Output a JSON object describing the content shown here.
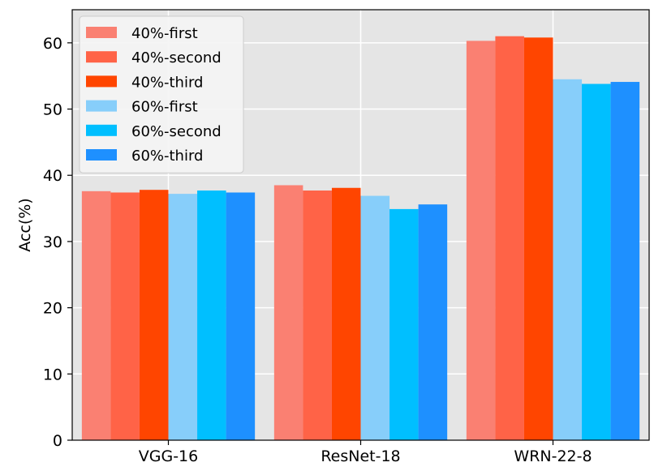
{
  "chart_data": {
    "type": "bar",
    "title": "",
    "xlabel": "",
    "ylabel": "Acc(%)",
    "ylim": [
      0,
      65
    ],
    "yticks": [
      0,
      10,
      20,
      30,
      40,
      50,
      60
    ],
    "grid": true,
    "legend_position": "top-left",
    "categories": [
      "VGG-16",
      "ResNet-18",
      "WRN-22-8"
    ],
    "series": [
      {
        "name": "40%-first",
        "color": "#FA8072",
        "values": [
          37.6,
          38.5,
          60.3
        ]
      },
      {
        "name": "40%-second",
        "color": "#FF6347",
        "values": [
          37.4,
          37.7,
          61.0
        ]
      },
      {
        "name": "40%-third",
        "color": "#FF4500",
        "values": [
          37.8,
          38.1,
          60.8
        ]
      },
      {
        "name": "60%-first",
        "color": "#87CEFA",
        "values": [
          37.2,
          36.9,
          54.5
        ]
      },
      {
        "name": "60%-second",
        "color": "#00BFFF",
        "values": [
          37.7,
          34.9,
          53.8
        ]
      },
      {
        "name": "60%-third",
        "color": "#1E90FF",
        "values": [
          37.4,
          35.6,
          54.1
        ]
      }
    ]
  }
}
